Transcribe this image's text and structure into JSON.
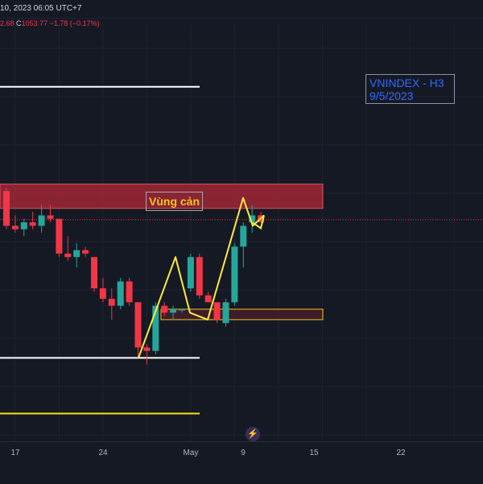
{
  "header": {
    "datetime_text": "10, 2023 06:05 UTC+7"
  },
  "ohlc": {
    "partial_value": "2.68",
    "close_label": "C",
    "close_value": "1053.77",
    "change": "−1.78 (−0.17%)"
  },
  "annotation": {
    "line1": "VNINDEX - H3",
    "line2": "9/5/2023"
  },
  "resistance_label": "Vùng cản",
  "colors": {
    "background": "#151924",
    "up_candle": "#26a69a",
    "down_candle": "#f23645",
    "resistance_zone": "#b22838",
    "support_zone": "#f5c518",
    "zigzag": "#ffeb3b",
    "level_line_white": "#ffffff",
    "level_line_yellow": "#f5e11a"
  },
  "icons": {
    "replay": "lightning-replay-icon"
  },
  "chart_data": {
    "type": "candlestick",
    "x_ticks": [
      "17",
      "24",
      "May",
      "9",
      "15",
      "22"
    ],
    "candles": [
      {
        "o": 1062,
        "h": 1063,
        "l": 1051,
        "c": 1052
      },
      {
        "o": 1052,
        "h": 1055,
        "l": 1050,
        "c": 1051
      },
      {
        "o": 1051,
        "h": 1054,
        "l": 1049,
        "c": 1053
      },
      {
        "o": 1053,
        "h": 1056,
        "l": 1051,
        "c": 1052
      },
      {
        "o": 1052,
        "h": 1058,
        "l": 1050,
        "c": 1055
      },
      {
        "o": 1055,
        "h": 1058,
        "l": 1053,
        "c": 1054
      },
      {
        "o": 1054,
        "h": 1054,
        "l": 1043,
        "c": 1044
      },
      {
        "o": 1044,
        "h": 1049,
        "l": 1042,
        "c": 1043
      },
      {
        "o": 1043,
        "h": 1047,
        "l": 1040,
        "c": 1045
      },
      {
        "o": 1045,
        "h": 1046,
        "l": 1043,
        "c": 1044
      },
      {
        "o": 1043,
        "h": 1043,
        "l": 1033,
        "c": 1034
      },
      {
        "o": 1034,
        "h": 1037,
        "l": 1030,
        "c": 1031
      },
      {
        "o": 1031,
        "h": 1034,
        "l": 1025,
        "c": 1029
      },
      {
        "o": 1029,
        "h": 1037,
        "l": 1028,
        "c": 1036
      },
      {
        "o": 1036,
        "h": 1037,
        "l": 1029,
        "c": 1030
      },
      {
        "o": 1030,
        "h": 1030,
        "l": 1014,
        "c": 1017
      },
      {
        "o": 1017,
        "h": 1018,
        "l": 1012,
        "c": 1016
      },
      {
        "o": 1016,
        "h": 1030,
        "l": 1015,
        "c": 1029
      },
      {
        "o": 1029,
        "h": 1030,
        "l": 1026,
        "c": 1027
      },
      {
        "o": 1027,
        "h": 1029,
        "l": 1025,
        "c": 1028
      },
      {
        "o": 1028,
        "h": 1028,
        "l": 1027,
        "c": 1028
      },
      {
        "o": 1034,
        "h": 1044,
        "l": 1033,
        "c": 1043
      },
      {
        "o": 1043,
        "h": 1044,
        "l": 1031,
        "c": 1032
      },
      {
        "o": 1032,
        "h": 1033,
        "l": 1030,
        "c": 1030
      },
      {
        "o": 1030,
        "h": 1030,
        "l": 1024,
        "c": 1025
      },
      {
        "o": 1024,
        "h": 1031,
        "l": 1023,
        "c": 1030
      },
      {
        "o": 1030,
        "h": 1047,
        "l": 1029,
        "c": 1046
      },
      {
        "o": 1046,
        "h": 1053,
        "l": 1040,
        "c": 1052
      },
      {
        "o": 1053,
        "h": 1058,
        "l": 1050,
        "c": 1055
      },
      {
        "o": 1055,
        "h": 1056,
        "l": 1053,
        "c": 1053
      }
    ],
    "price_range": [
      990,
      1110
    ],
    "levels": {
      "white_upper": 1092,
      "white_lower": 1014,
      "yellow_lower": 998,
      "last_price": 1053.77
    },
    "resistance_zone": [
      1057,
      1064
    ],
    "support_zone": [
      1025,
      1028
    ],
    "zigzag": [
      1014,
      1043,
      1027,
      1025,
      1060,
      1052,
      1055
    ]
  }
}
